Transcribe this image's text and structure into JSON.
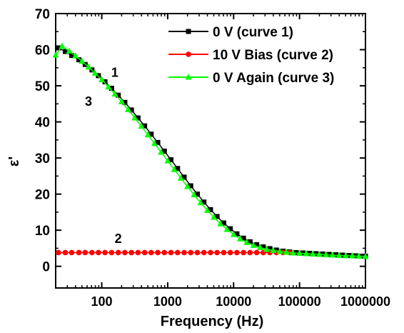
{
  "chart_data": {
    "type": "line",
    "title": "",
    "xlabel": "Frequency (Hz)",
    "ylabel": "ε'",
    "xscale": "log",
    "xlim": [
      20,
      1000000
    ],
    "ylim": [
      -6,
      70
    ],
    "x_ticks": [
      100,
      1000,
      10000,
      100000,
      1000000
    ],
    "x_tick_labels": [
      "100",
      "1000",
      "10000",
      "100000",
      "1000000"
    ],
    "y_ticks": [
      0,
      10,
      20,
      30,
      40,
      50,
      60,
      70
    ],
    "y_tick_labels": [
      "0",
      "10",
      "20",
      "30",
      "40",
      "50",
      "60",
      "70"
    ],
    "grid": false,
    "legend_position": "top-right",
    "series": [
      {
        "name": "0 V (curve 1)",
        "color": "#000000",
        "marker": "square",
        "x": [
          22,
          28,
          35,
          45,
          56,
          71,
          89,
          112,
          141,
          178,
          224,
          282,
          355,
          447,
          562,
          708,
          891,
          1122,
          1413,
          1778,
          2239,
          2818,
          3548,
          4467,
          5623,
          7079,
          8913,
          11220,
          14125,
          17783,
          22387,
          28184,
          35481,
          44668,
          56234,
          70795,
          89125,
          112202,
          141254,
          177828,
          223872,
          281838,
          354813,
          446684,
          562341,
          707946,
          891251,
          1000000
        ],
        "values": [
          60.5,
          59.5,
          58.4,
          57.2,
          55.9,
          54.4,
          52.8,
          51.1,
          49.3,
          47.4,
          45.4,
          43.3,
          41.1,
          38.9,
          36.6,
          34.3,
          31.9,
          29.5,
          27.1,
          24.7,
          22.3,
          20.0,
          17.8,
          15.7,
          13.8,
          12.0,
          10.4,
          9.0,
          7.8,
          6.8,
          6.0,
          5.4,
          4.9,
          4.5,
          4.2,
          4.0,
          3.8,
          3.7,
          3.6,
          3.5,
          3.4,
          3.3,
          3.2,
          3.1,
          3.0,
          2.9,
          2.8,
          2.8
        ]
      },
      {
        "name": "10 V Bias (curve 2)",
        "color": "#ff0000",
        "marker": "circle",
        "x": [
          22,
          28,
          35,
          45,
          56,
          71,
          89,
          112,
          141,
          178,
          224,
          282,
          355,
          447,
          562,
          708,
          891,
          1122,
          1413,
          1778,
          2239,
          2818,
          3548,
          4467,
          5623,
          7079,
          8913,
          11220,
          14125,
          17783,
          22387,
          28184,
          35481,
          44668,
          56234,
          70795
        ],
        "values": [
          3.8,
          3.8,
          3.8,
          3.8,
          3.8,
          3.8,
          3.8,
          3.8,
          3.8,
          3.8,
          3.8,
          3.8,
          3.8,
          3.8,
          3.8,
          3.8,
          3.8,
          3.8,
          3.8,
          3.8,
          3.8,
          3.8,
          3.8,
          3.8,
          3.8,
          3.8,
          3.8,
          3.8,
          3.8,
          3.8,
          3.8,
          3.8,
          3.8,
          3.8,
          3.8,
          3.8
        ]
      },
      {
        "name": "0 V Again (curve 3)",
        "color": "#00ff00",
        "marker": "triangle",
        "x": [
          20,
          25,
          32,
          40,
          50,
          63,
          79,
          100,
          126,
          158,
          200,
          251,
          316,
          398,
          501,
          631,
          794,
          1000,
          1259,
          1585,
          1995,
          2512,
          3162,
          3981,
          5012,
          6310,
          7943,
          10000,
          12589,
          15849,
          19953,
          25119,
          31623,
          39811,
          50119,
          63096,
          79433,
          100000,
          125893,
          158489,
          199526,
          251189,
          316228,
          398107,
          501187,
          630957,
          794328,
          1000000
        ],
        "values": [
          58.5,
          61.0,
          59.6,
          58.3,
          56.8,
          55.2,
          53.5,
          51.7,
          49.7,
          47.7,
          45.6,
          43.4,
          41.1,
          38.8,
          36.4,
          34.0,
          31.6,
          29.2,
          26.8,
          24.4,
          22.1,
          19.8,
          17.6,
          15.5,
          13.6,
          11.8,
          10.2,
          8.8,
          7.6,
          6.6,
          5.8,
          5.2,
          4.7,
          4.4,
          4.1,
          3.9,
          3.7,
          3.6,
          3.5,
          3.4,
          3.3,
          3.2,
          3.1,
          3.0,
          2.9,
          2.9,
          2.8,
          2.7
        ]
      }
    ],
    "annotations": [
      {
        "text": "1",
        "x": 158,
        "y": 52.5
      },
      {
        "text": "3",
        "x": 63,
        "y": 44.5
      },
      {
        "text": "2",
        "x": 178,
        "y": 6.5
      }
    ]
  }
}
